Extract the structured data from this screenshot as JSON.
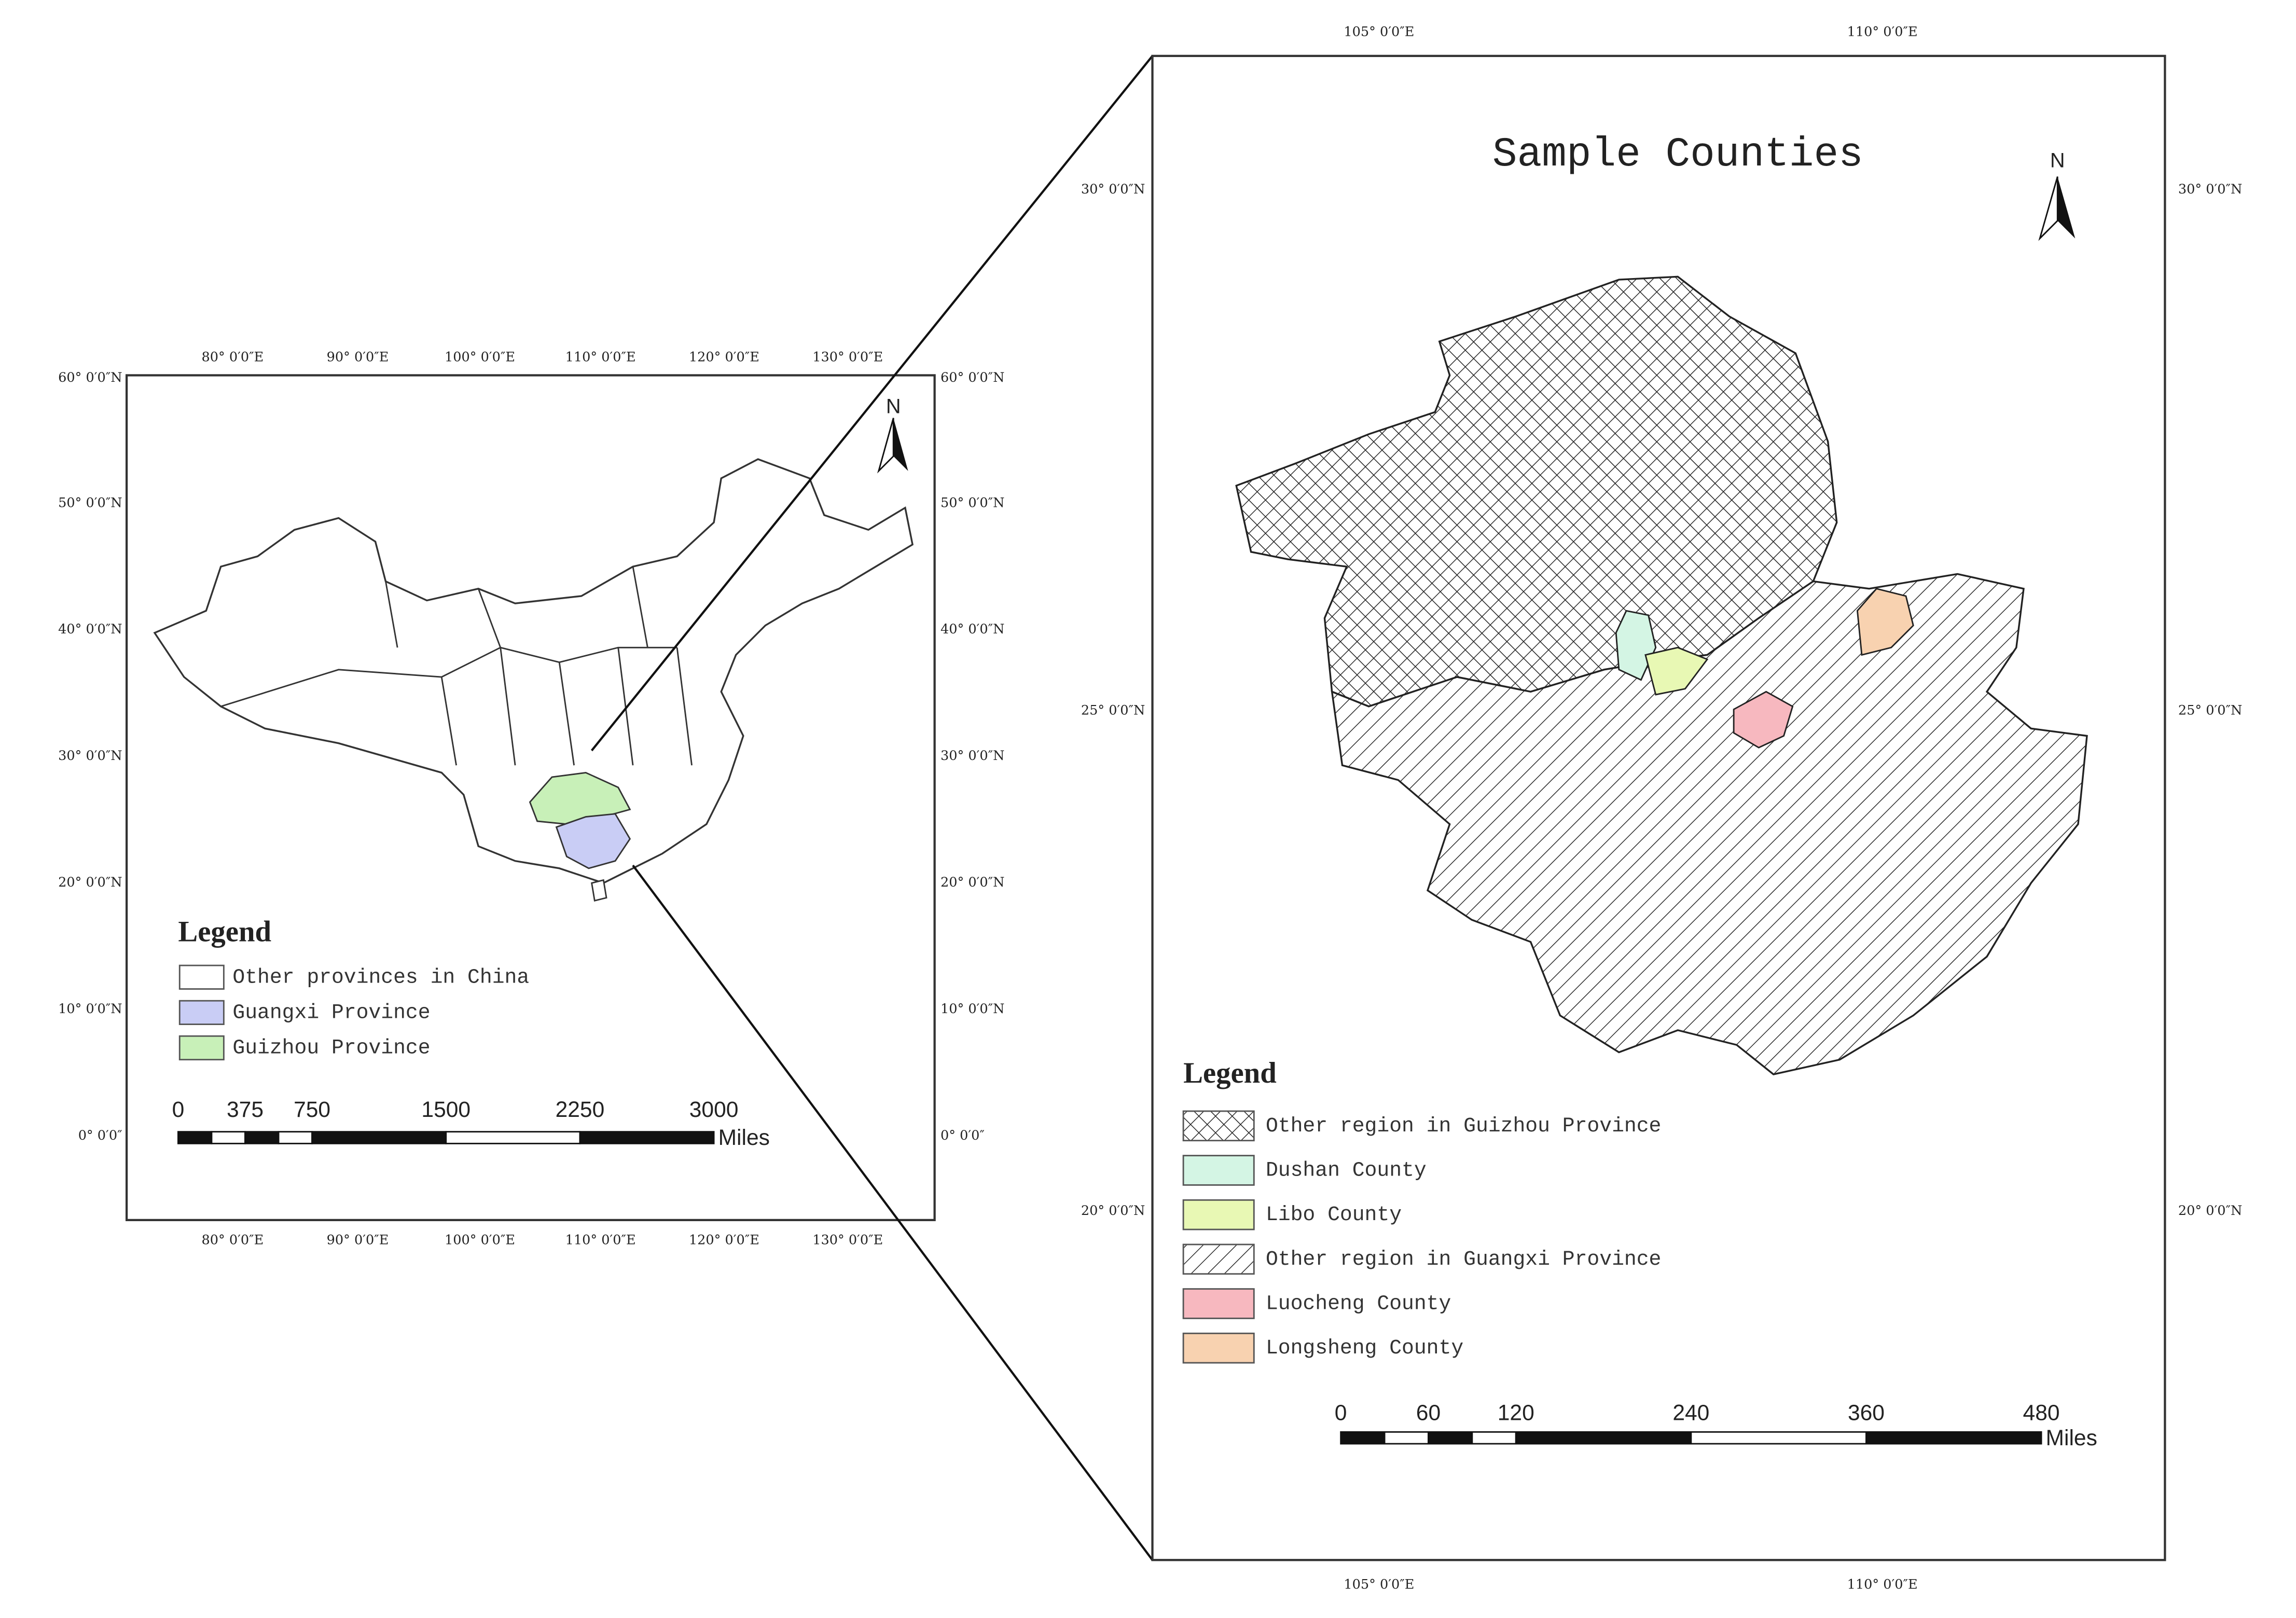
{
  "left_map": {
    "lon_labels": [
      "80° 0′0″E",
      "90° 0′0″E",
      "100° 0′0″E",
      "110° 0′0″E",
      "120° 0′0″E",
      "130° 0′0″E"
    ],
    "lat_labels": [
      "60° 0′0″N",
      "50° 0′0″N",
      "40° 0′0″N",
      "30° 0′0″N",
      "20° 0′0″N",
      "10° 0′0″N",
      "0° 0′0″"
    ],
    "north": "N",
    "legend": {
      "title": "Legend",
      "items": [
        {
          "name": "Other provinces in China",
          "color": "#ffffff"
        },
        {
          "name": "Guangxi Province",
          "color": "#c9cdf5"
        },
        {
          "name": "Guizhou Province",
          "color": "#c8f0b8"
        }
      ]
    },
    "scale_bar": {
      "ticks": [
        0,
        375,
        750,
        1500,
        2250,
        3000
      ],
      "unit": "Miles"
    }
  },
  "right_map": {
    "title": "Sample Counties",
    "lon_labels": [
      "105° 0′0″E",
      "110° 0′0″E"
    ],
    "lat_labels": [
      "30° 0′0″N",
      "25° 0′0″N",
      "20° 0′0″N"
    ],
    "north": "N",
    "legend": {
      "title": "Legend",
      "items": [
        {
          "name": "Other region in Guizhou Province",
          "pattern": "cross"
        },
        {
          "name": "Dushan County",
          "color": "#d4f5e4"
        },
        {
          "name": "Libo County",
          "color": "#e8f8b4"
        },
        {
          "name": "Other region in Guangxi Province",
          "pattern": "diag"
        },
        {
          "name": "Luocheng County",
          "color": "#f7b8bf"
        },
        {
          "name": "Longsheng County",
          "color": "#f8d2b0"
        }
      ]
    },
    "scale_bar": {
      "ticks": [
        0,
        60,
        120,
        240,
        360,
        480
      ],
      "unit": "Miles"
    }
  }
}
